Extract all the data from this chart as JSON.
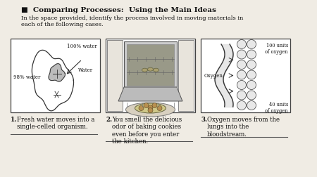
{
  "bg_color": "#f0ece4",
  "title_bullet": "■  Comparing Processes:  Using the Main Ideas",
  "instruction": "In the space provided, identify the process involved in moving materials in\neach of the following cases.",
  "box1_labels": [
    "100% water",
    "98% water",
    "Water"
  ],
  "box3_labels": [
    "100 units\nof oxygen",
    "Oxygen",
    "40 units\nof oxygen"
  ],
  "caption1_num": "1.",
  "caption1_text": "Fresh water moves into a\nsingle-celled organism.",
  "caption2_num": "2.",
  "caption2_text": "You smell the delicious\nodor of baking cookies\neven before you enter\nthe kitchen.",
  "caption3_num": "3.",
  "caption3_text": "Oxygen moves from the\nlungs into the\nbloodstream.",
  "title_fontsize": 7.5,
  "body_fontsize": 6.0,
  "caption_fontsize": 6.2,
  "box_edge": "#444444",
  "line_color": "#333333",
  "sketch_color": "#333333"
}
